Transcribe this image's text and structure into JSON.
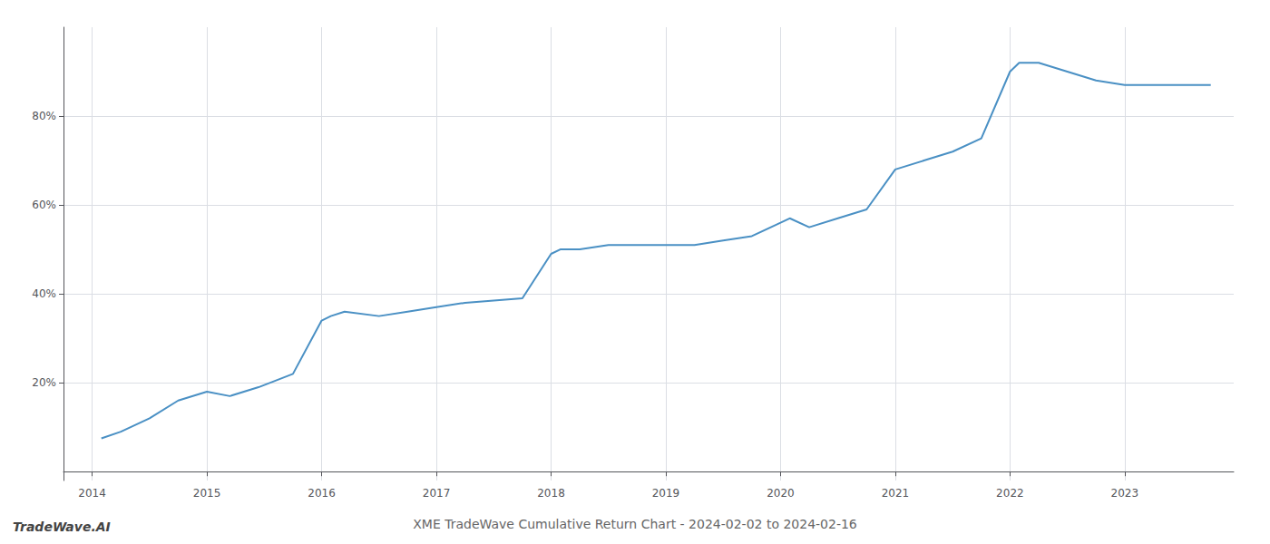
{
  "chart_data": {
    "type": "line",
    "title": "XME TradeWave Cumulative Return Chart - 2024-02-02 to 2024-02-16",
    "annotations": [
      "TradeWave.AI"
    ],
    "color": "#4a90c4",
    "x": [
      2014.08,
      2014.25,
      2014.5,
      2014.75,
      2015.0,
      2015.2,
      2015.45,
      2015.75,
      2016.0,
      2016.08,
      2016.2,
      2016.5,
      2016.75,
      2017.0,
      2017.25,
      2017.5,
      2017.75,
      2018.0,
      2018.08,
      2018.25,
      2018.5,
      2018.75,
      2019.0,
      2019.25,
      2019.5,
      2019.75,
      2020.0,
      2020.08,
      2020.25,
      2020.5,
      2020.75,
      2021.0,
      2021.25,
      2021.5,
      2021.75,
      2022.0,
      2022.08,
      2022.25,
      2022.5,
      2022.75,
      2023.0,
      2023.25,
      2023.5,
      2023.75
    ],
    "values": [
      7.5,
      9,
      12,
      16,
      18,
      17,
      19,
      22,
      34,
      35,
      36,
      35,
      36,
      37,
      38,
      38.5,
      39,
      49,
      50,
      50,
      51,
      51,
      51,
      51,
      52,
      53,
      56,
      57,
      55,
      57,
      59,
      68,
      70,
      72,
      75,
      90,
      92,
      92,
      90,
      88,
      87,
      87,
      87,
      87
    ],
    "xlim": [
      2013.75,
      2023.95
    ],
    "ylim": [
      -2,
      100
    ],
    "xticks": [
      2014,
      2015,
      2016,
      2017,
      2018,
      2019,
      2020,
      2021,
      2022,
      2023
    ],
    "yticks": [
      {
        "value": 20,
        "label": "20%"
      },
      {
        "value": 40,
        "label": "40%"
      },
      {
        "value": 60,
        "label": "60%"
      },
      {
        "value": 80,
        "label": "80%"
      }
    ],
    "grid": true
  }
}
